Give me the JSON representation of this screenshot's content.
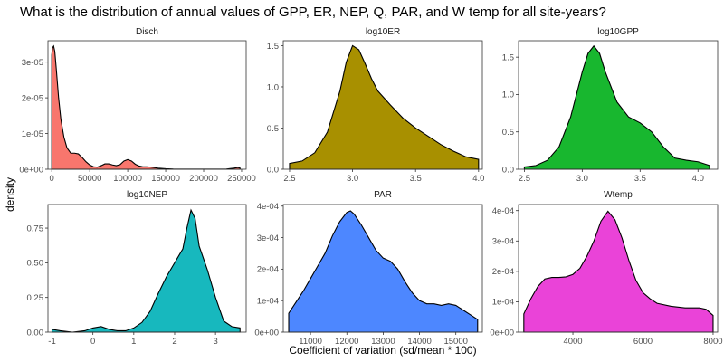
{
  "chart_data": {
    "type": "area",
    "title": "What is the distribution of annual values of GPP, ER, NEP, Q, PAR, and W temp for all site-years?",
    "xlabel": "Coefficient of variation (sd/mean * 100)",
    "ylabel": "density",
    "grid": false,
    "legend": "none",
    "panels": [
      {
        "name": "Disch",
        "color": "#F8766D",
        "xlim": [
          -5000,
          256000
        ],
        "ylim": [
          0,
          3.6e-05
        ],
        "xticks": [
          0,
          50000,
          100000,
          150000,
          200000,
          250000
        ],
        "xtick_labels": [
          "0",
          "50000",
          "100000",
          "150000",
          "200000",
          "250000"
        ],
        "yticks": [
          0,
          1e-05,
          2e-05,
          3e-05
        ],
        "ytick_labels": [
          "0e+00",
          "1e-05",
          "2e-05",
          "3e-05"
        ],
        "points": [
          [
            0,
            3.2e-05
          ],
          [
            1000,
            3.4e-05
          ],
          [
            2500,
            3.45e-05
          ],
          [
            4000,
            3.3e-05
          ],
          [
            6000,
            2.8e-05
          ],
          [
            9000,
            2e-05
          ],
          [
            12000,
            1.4e-05
          ],
          [
            16000,
            9e-06
          ],
          [
            20000,
            6e-06
          ],
          [
            25000,
            4.5e-06
          ],
          [
            30000,
            4.5e-06
          ],
          [
            35000,
            4.3e-06
          ],
          [
            40000,
            3.3e-06
          ],
          [
            45000,
            2.1e-06
          ],
          [
            50000,
            1.2e-06
          ],
          [
            55000,
            7e-07
          ],
          [
            60000,
            6e-07
          ],
          [
            65000,
            1e-06
          ],
          [
            70000,
            1.5e-06
          ],
          [
            75000,
            1.5e-06
          ],
          [
            80000,
            1.2e-06
          ],
          [
            85000,
            1e-06
          ],
          [
            90000,
            1.3e-06
          ],
          [
            95000,
            2.3e-06
          ],
          [
            100000,
            2.7e-06
          ],
          [
            105000,
            2.3e-06
          ],
          [
            110000,
            1.4e-06
          ],
          [
            115000,
            9e-07
          ],
          [
            120000,
            7e-07
          ],
          [
            125000,
            7e-07
          ],
          [
            130000,
            6e-07
          ],
          [
            140000,
            3e-07
          ],
          [
            150000,
            1.5e-07
          ],
          [
            160000,
            5e-08
          ],
          [
            200000,
            1e-08
          ],
          [
            230000,
            5e-08
          ],
          [
            240000,
            3e-07
          ],
          [
            245000,
            5e-07
          ],
          [
            248000,
            3e-07
          ]
        ]
      },
      {
        "name": "log10ER",
        "color": "#A89000",
        "xlim": [
          2.45,
          4.03
        ],
        "ylim": [
          0,
          1.56
        ],
        "xticks": [
          2.5,
          3.0,
          3.5,
          4.0
        ],
        "xtick_labels": [
          "2.5",
          "3.0",
          "3.5",
          "4.0"
        ],
        "yticks": [
          0,
          0.5,
          1.0,
          1.5
        ],
        "ytick_labels": [
          "0.0",
          "0.5",
          "1.0",
          "1.5"
        ],
        "points": [
          [
            2.5,
            0.07
          ],
          [
            2.6,
            0.1
          ],
          [
            2.7,
            0.2
          ],
          [
            2.8,
            0.45
          ],
          [
            2.9,
            0.95
          ],
          [
            2.95,
            1.3
          ],
          [
            3.0,
            1.5
          ],
          [
            3.05,
            1.45
          ],
          [
            3.1,
            1.28
          ],
          [
            3.15,
            1.1
          ],
          [
            3.2,
            0.95
          ],
          [
            3.3,
            0.78
          ],
          [
            3.4,
            0.62
          ],
          [
            3.5,
            0.5
          ],
          [
            3.6,
            0.4
          ],
          [
            3.7,
            0.3
          ],
          [
            3.8,
            0.22
          ],
          [
            3.9,
            0.15
          ],
          [
            4.0,
            0.12
          ]
        ]
      },
      {
        "name": "log10GPP",
        "color": "#18B72F",
        "xlim": [
          2.45,
          4.17
        ],
        "ylim": [
          0,
          1.72
        ],
        "xticks": [
          2.5,
          3.0,
          3.5,
          4.0
        ],
        "xtick_labels": [
          "2.5",
          "3.0",
          "3.5",
          "4.0"
        ],
        "yticks": [
          0,
          0.5,
          1.0,
          1.5
        ],
        "ytick_labels": [
          "0.0",
          "0.5",
          "1.0",
          "1.5"
        ],
        "points": [
          [
            2.5,
            0.03
          ],
          [
            2.6,
            0.05
          ],
          [
            2.7,
            0.12
          ],
          [
            2.8,
            0.3
          ],
          [
            2.9,
            0.7
          ],
          [
            3.0,
            1.3
          ],
          [
            3.05,
            1.55
          ],
          [
            3.1,
            1.65
          ],
          [
            3.15,
            1.55
          ],
          [
            3.2,
            1.3
          ],
          [
            3.3,
            0.9
          ],
          [
            3.4,
            0.7
          ],
          [
            3.5,
            0.62
          ],
          [
            3.6,
            0.5
          ],
          [
            3.7,
            0.3
          ],
          [
            3.8,
            0.15
          ],
          [
            3.9,
            0.12
          ],
          [
            4.0,
            0.1
          ],
          [
            4.1,
            0.05
          ]
        ]
      },
      {
        "name": "log10NEP",
        "color": "#17B8BE",
        "xlim": [
          -1.1,
          3.75
        ],
        "ylim": [
          0,
          0.92
        ],
        "xticks": [
          -1,
          0,
          1,
          2,
          3
        ],
        "xtick_labels": [
          "-1",
          "0",
          "1",
          "2",
          "3"
        ],
        "yticks": [
          0,
          0.25,
          0.5,
          0.75
        ],
        "ytick_labels": [
          "0.00",
          "0.25",
          "0.50",
          "0.75"
        ],
        "points": [
          [
            -1.0,
            0.02
          ],
          [
            -0.8,
            0.01
          ],
          [
            -0.5,
            0.0
          ],
          [
            -0.2,
            0.01
          ],
          [
            0.0,
            0.03
          ],
          [
            0.2,
            0.04
          ],
          [
            0.4,
            0.02
          ],
          [
            0.6,
            0.01
          ],
          [
            0.8,
            0.01
          ],
          [
            1.0,
            0.03
          ],
          [
            1.2,
            0.07
          ],
          [
            1.4,
            0.15
          ],
          [
            1.6,
            0.28
          ],
          [
            1.8,
            0.4
          ],
          [
            2.0,
            0.5
          ],
          [
            2.1,
            0.55
          ],
          [
            2.2,
            0.6
          ],
          [
            2.3,
            0.75
          ],
          [
            2.4,
            0.88
          ],
          [
            2.5,
            0.82
          ],
          [
            2.6,
            0.62
          ],
          [
            2.8,
            0.45
          ],
          [
            3.0,
            0.25
          ],
          [
            3.2,
            0.08
          ],
          [
            3.4,
            0.04
          ],
          [
            3.6,
            0.03
          ]
        ]
      },
      {
        "name": "PAR",
        "color": "#4D87FF",
        "xlim": [
          10250,
          15730
        ],
        "ylim": [
          0,
          0.000405
        ],
        "xticks": [
          11000,
          12000,
          13000,
          14000,
          15000
        ],
        "xtick_labels": [
          "11000",
          "12000",
          "13000",
          "14000",
          "15000"
        ],
        "yticks": [
          0,
          0.0001,
          0.0002,
          0.0003,
          0.0004
        ],
        "ytick_labels": [
          "0e+00",
          "1e-04",
          "2e-04",
          "3e-04",
          "4e-04"
        ],
        "points": [
          [
            10400,
            6e-05
          ],
          [
            10600,
            9.5e-05
          ],
          [
            10800,
            0.00013
          ],
          [
            11000,
            0.00017
          ],
          [
            11200,
            0.00021
          ],
          [
            11400,
            0.00025
          ],
          [
            11600,
            0.000305
          ],
          [
            11800,
            0.00035
          ],
          [
            12000,
            0.00038
          ],
          [
            12100,
            0.000385
          ],
          [
            12200,
            0.000375
          ],
          [
            12400,
            0.00034
          ],
          [
            12600,
            0.0003
          ],
          [
            12800,
            0.00026
          ],
          [
            13000,
            0.000235
          ],
          [
            13200,
            0.000225
          ],
          [
            13400,
            0.0002
          ],
          [
            13600,
            0.00016
          ],
          [
            13800,
            0.000125
          ],
          [
            14000,
            0.0001
          ],
          [
            14200,
            9e-05
          ],
          [
            14400,
            9e-05
          ],
          [
            14600,
            8.5e-05
          ],
          [
            14800,
            9e-05
          ],
          [
            15000,
            8.5e-05
          ],
          [
            15200,
            7e-05
          ],
          [
            15400,
            5.5e-05
          ],
          [
            15600,
            4e-05
          ]
        ]
      },
      {
        "name": "Wtemp",
        "color": "#EA43D8",
        "xlim": [
          2450,
          8130
        ],
        "ylim": [
          0,
          0.00042
        ],
        "xticks": [
          4000,
          6000,
          8000
        ],
        "xtick_labels": [
          "4000",
          "6000",
          "8000"
        ],
        "yticks": [
          0,
          0.0001,
          0.0002,
          0.0003,
          0.0004
        ],
        "ytick_labels": [
          "0e+00",
          "1e-04",
          "2e-04",
          "3e-04",
          "4e-04"
        ],
        "points": [
          [
            2600,
            6e-05
          ],
          [
            2800,
            0.00011
          ],
          [
            3000,
            0.00015
          ],
          [
            3200,
            0.000175
          ],
          [
            3400,
            0.00018
          ],
          [
            3600,
            0.00018
          ],
          [
            3800,
            0.000182
          ],
          [
            4000,
            0.00019
          ],
          [
            4200,
            0.00021
          ],
          [
            4400,
            0.00025
          ],
          [
            4600,
            0.0003
          ],
          [
            4800,
            0.000365
          ],
          [
            5000,
            0.000398
          ],
          [
            5200,
            0.00037
          ],
          [
            5400,
            0.00031
          ],
          [
            5600,
            0.000235
          ],
          [
            5800,
            0.00017
          ],
          [
            6000,
            0.00013
          ],
          [
            6200,
            0.00011
          ],
          [
            6400,
            9.5e-05
          ],
          [
            6800,
            8.5e-05
          ],
          [
            7200,
            8e-05
          ],
          [
            7600,
            8e-05
          ],
          [
            7800,
            7.5e-05
          ],
          [
            8000,
            5.5e-05
          ]
        ]
      }
    ]
  }
}
